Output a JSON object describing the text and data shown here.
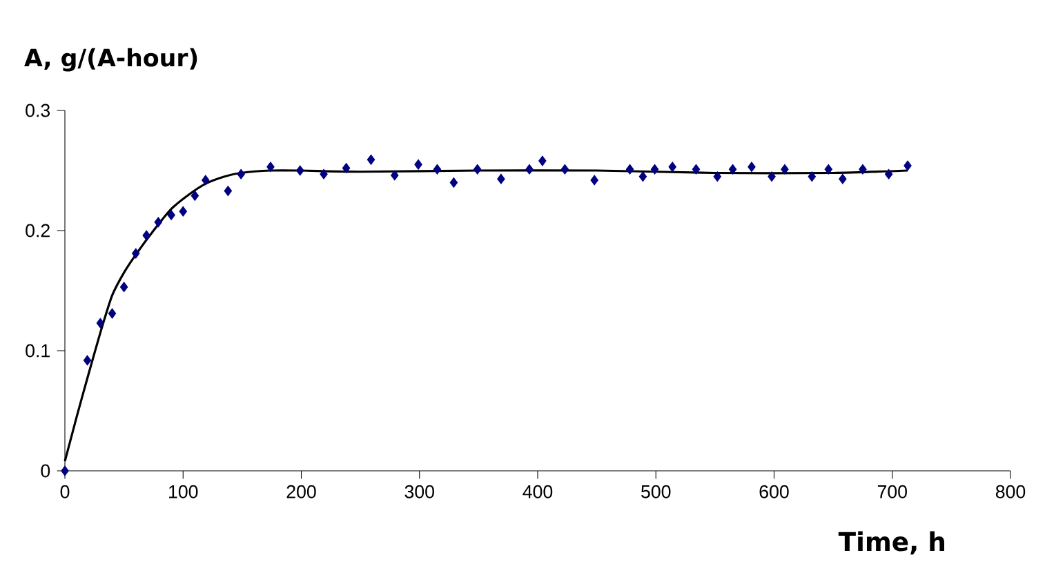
{
  "chart_data": {
    "type": "scatter",
    "xlabel": "Time, h",
    "ylabel": "A, g/(A-hour)",
    "xlim": [
      0,
      800
    ],
    "ylim": [
      0,
      0.3
    ],
    "xticks": [
      0,
      100,
      200,
      300,
      400,
      500,
      600,
      700,
      800
    ],
    "yticks": [
      0,
      0.1,
      0.2,
      0.3
    ],
    "grid": false,
    "series": [
      {
        "color": "#000080",
        "marker": "diamond",
        "x": [
          0,
          19,
          30,
          40,
          50,
          60,
          69,
          79,
          90,
          100,
          110,
          119,
          138,
          149,
          174,
          199,
          219,
          238,
          259,
          279,
          299,
          315,
          329,
          349,
          369,
          393,
          404,
          423,
          448,
          478,
          489,
          499,
          514,
          534,
          552,
          565,
          581,
          598,
          609,
          632,
          646,
          658,
          675,
          697,
          713
        ],
        "values": [
          0,
          0.092,
          0.123,
          0.131,
          0.153,
          0.181,
          0.196,
          0.207,
          0.213,
          0.216,
          0.229,
          0.242,
          0.233,
          0.247,
          0.253,
          0.25,
          0.247,
          0.252,
          0.259,
          0.246,
          0.255,
          0.251,
          0.24,
          0.251,
          0.243,
          0.251,
          0.258,
          0.251,
          0.242,
          0.251,
          0.245,
          0.251,
          0.253,
          0.251,
          0.245,
          0.251,
          0.253,
          0.245,
          0.251,
          0.245,
          0.251,
          0.243,
          0.251,
          0.247,
          0.254
        ]
      },
      {
        "type": "line",
        "color": "#000000",
        "marker": "none",
        "line_style": "solid",
        "x": [
          0,
          10,
          19,
          30,
          40,
          50,
          60,
          75,
          90,
          105,
          119,
          135,
          149,
          174,
          200,
          250,
          350,
          450,
          550,
          650,
          713
        ],
        "values": [
          0.008,
          0.045,
          0.077,
          0.115,
          0.146,
          0.165,
          0.18,
          0.2,
          0.218,
          0.23,
          0.239,
          0.245,
          0.248,
          0.25,
          0.25,
          0.249,
          0.25,
          0.25,
          0.248,
          0.248,
          0.25
        ]
      }
    ]
  }
}
